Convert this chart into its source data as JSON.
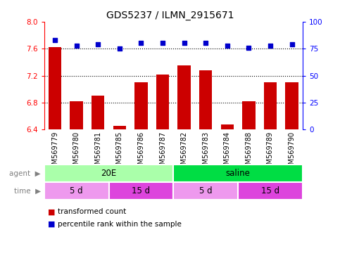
{
  "title": "GDS5237 / ILMN_2915671",
  "samples": [
    "GSM569779",
    "GSM569780",
    "GSM569781",
    "GSM569785",
    "GSM569786",
    "GSM569787",
    "GSM569782",
    "GSM569783",
    "GSM569784",
    "GSM569788",
    "GSM569789",
    "GSM569790"
  ],
  "transformed_count": [
    7.62,
    6.82,
    6.9,
    6.46,
    7.1,
    7.22,
    7.35,
    7.28,
    6.48,
    6.82,
    7.1,
    7.1
  ],
  "percentile_rank": [
    83,
    78,
    79,
    75,
    80,
    80,
    80,
    80,
    78,
    76,
    78,
    79
  ],
  "ylim_left": [
    6.4,
    8.0
  ],
  "ylim_right": [
    0,
    100
  ],
  "yticks_left": [
    6.4,
    6.8,
    7.2,
    7.6,
    8.0
  ],
  "yticks_right": [
    0,
    25,
    50,
    75,
    100
  ],
  "bar_color": "#cc0000",
  "dot_color": "#0000cc",
  "agent_groups": [
    {
      "label": "20E",
      "start": 0,
      "end": 6,
      "color": "#aaffaa"
    },
    {
      "label": "saline",
      "start": 6,
      "end": 12,
      "color": "#00dd44"
    }
  ],
  "time_groups": [
    {
      "label": "5 d",
      "start": 0,
      "end": 3,
      "color": "#ee99ee"
    },
    {
      "label": "15 d",
      "start": 3,
      "end": 6,
      "color": "#dd44dd"
    },
    {
      "label": "5 d",
      "start": 6,
      "end": 9,
      "color": "#ee99ee"
    },
    {
      "label": "15 d",
      "start": 9,
      "end": 12,
      "color": "#dd44dd"
    }
  ],
  "legend_items": [
    {
      "label": "transformed count",
      "color": "#cc0000"
    },
    {
      "label": "percentile rank within the sample",
      "color": "#0000cc"
    }
  ],
  "tick_label_fontsize": 7,
  "bar_bottom": 6.4,
  "xtick_bg_color": "#cccccc",
  "xtick_sep_color": "#ffffff"
}
